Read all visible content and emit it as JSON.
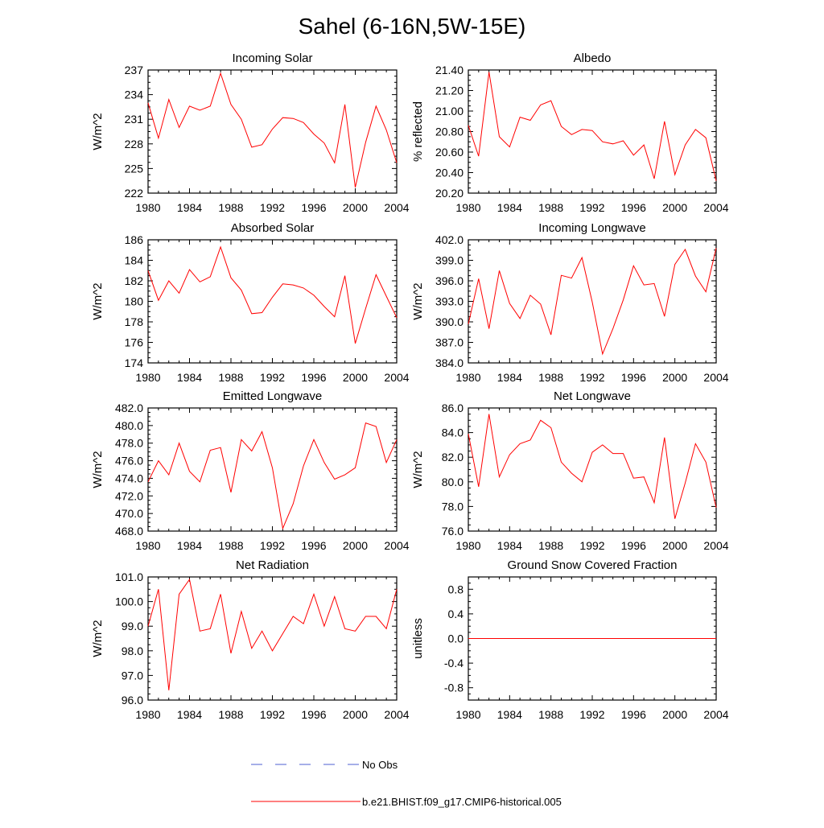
{
  "figure": {
    "title": "Sahel (6-16N,5W-15E)"
  },
  "legend": [
    {
      "label": "No Obs",
      "color": "#4c5fd0",
      "style": "dashed"
    },
    {
      "label": "b.e21.BHIST.f09_g17.CMIP6-historical.005",
      "color": "#ff0000",
      "style": "solid"
    }
  ],
  "chart_data": [
    {
      "type": "line",
      "title": "Incoming Solar",
      "ylabel": "W/m^2",
      "xlim": [
        1980,
        2004
      ],
      "ylim": [
        222,
        237
      ],
      "xticks": [
        1980,
        1984,
        1988,
        1992,
        1996,
        2000,
        2004
      ],
      "yticks": [
        "222",
        "225",
        "228",
        "231",
        "234",
        "237"
      ],
      "x": [
        1980,
        1981,
        1982,
        1983,
        1984,
        1985,
        1986,
        1987,
        1988,
        1989,
        1990,
        1991,
        1992,
        1993,
        1994,
        1995,
        1996,
        1997,
        1998,
        1999,
        2000,
        2001,
        2002,
        2003,
        2004
      ],
      "series": [
        {
          "color": "#ff0000",
          "values": [
            233.0,
            228.7,
            233.4,
            230.0,
            232.6,
            232.1,
            232.6,
            236.6,
            232.8,
            231.0,
            227.6,
            227.9,
            229.8,
            231.2,
            231.1,
            230.6,
            229.2,
            228.1,
            225.7,
            232.8,
            222.7,
            228.2,
            232.6,
            229.7,
            225.7
          ]
        }
      ]
    },
    {
      "type": "line",
      "title": "Albedo",
      "ylabel": "% reflected",
      "xlim": [
        1980,
        2004
      ],
      "ylim": [
        20.2,
        21.4
      ],
      "xticks": [
        1980,
        1984,
        1988,
        1992,
        1996,
        2000,
        2004
      ],
      "yticks": [
        "20.20",
        "20.40",
        "20.60",
        "20.80",
        "21.00",
        "21.20",
        "21.40"
      ],
      "x": [
        1980,
        1981,
        1982,
        1983,
        1984,
        1985,
        1986,
        1987,
        1988,
        1989,
        1990,
        1991,
        1992,
        1993,
        1994,
        1995,
        1996,
        1997,
        1998,
        1999,
        2000,
        2001,
        2002,
        2003,
        2004
      ],
      "series": [
        {
          "color": "#ff0000",
          "values": [
            20.86,
            20.56,
            21.38,
            20.75,
            20.65,
            20.94,
            20.91,
            21.06,
            21.1,
            20.85,
            20.77,
            20.82,
            20.81,
            20.7,
            20.68,
            20.71,
            20.57,
            20.67,
            20.34,
            20.9,
            20.38,
            20.67,
            20.82,
            20.74,
            20.32
          ]
        }
      ]
    },
    {
      "type": "line",
      "title": "Absorbed Solar",
      "ylabel": "W/m^2",
      "xlim": [
        1980,
        2004
      ],
      "ylim": [
        174,
        186
      ],
      "xticks": [
        1980,
        1984,
        1988,
        1992,
        1996,
        2000,
        2004
      ],
      "yticks": [
        "174",
        "176",
        "178",
        "180",
        "182",
        "184",
        "186"
      ],
      "x": [
        1980,
        1981,
        1982,
        1983,
        1984,
        1985,
        1986,
        1987,
        1988,
        1989,
        1990,
        1991,
        1992,
        1993,
        1994,
        1995,
        1996,
        1997,
        1998,
        1999,
        2000,
        2001,
        2002,
        2003,
        2004
      ],
      "series": [
        {
          "color": "#ff0000",
          "values": [
            183.0,
            180.1,
            182.0,
            180.8,
            183.1,
            181.9,
            182.4,
            185.3,
            182.3,
            181.1,
            178.8,
            178.9,
            180.4,
            181.7,
            181.6,
            181.3,
            180.6,
            179.5,
            178.5,
            182.5,
            175.9,
            179.3,
            182.6,
            180.5,
            178.4
          ]
        }
      ]
    },
    {
      "type": "line",
      "title": "Incoming Longwave",
      "ylabel": "W/m^2",
      "xlim": [
        1980,
        2004
      ],
      "ylim": [
        384,
        402
      ],
      "xticks": [
        1980,
        1984,
        1988,
        1992,
        1996,
        2000,
        2004
      ],
      "yticks": [
        "384.0",
        "387.0",
        "390.0",
        "393.0",
        "396.0",
        "399.0",
        "402.0"
      ],
      "x": [
        1980,
        1981,
        1982,
        1983,
        1984,
        1985,
        1986,
        1987,
        1988,
        1989,
        1990,
        1991,
        1992,
        1993,
        1994,
        1995,
        1996,
        1997,
        1998,
        1999,
        2000,
        2001,
        2002,
        2003,
        2004
      ],
      "series": [
        {
          "color": "#ff0000",
          "values": [
            389.7,
            396.3,
            389.0,
            397.5,
            392.7,
            390.5,
            393.9,
            392.6,
            388.1,
            396.8,
            396.4,
            399.4,
            392.9,
            385.3,
            389.0,
            393.2,
            398.2,
            395.4,
            395.6,
            390.8,
            398.4,
            400.6,
            396.7,
            394.4,
            400.8
          ]
        }
      ]
    },
    {
      "type": "line",
      "title": "Emitted Longwave",
      "ylabel": "W/m^2",
      "xlim": [
        1980,
        2004
      ],
      "ylim": [
        468,
        482
      ],
      "xticks": [
        1980,
        1984,
        1988,
        1992,
        1996,
        2000,
        2004
      ],
      "yticks": [
        "468.0",
        "470.0",
        "472.0",
        "474.0",
        "476.0",
        "478.0",
        "480.0",
        "482.0"
      ],
      "x": [
        1980,
        1981,
        1982,
        1983,
        1984,
        1985,
        1986,
        1987,
        1988,
        1989,
        1990,
        1991,
        1992,
        1993,
        1994,
        1995,
        1996,
        1997,
        1998,
        1999,
        2000,
        2001,
        2002,
        2003,
        2004
      ],
      "series": [
        {
          "color": "#ff0000",
          "values": [
            473.6,
            476.0,
            474.4,
            478.0,
            474.8,
            473.6,
            477.2,
            477.5,
            472.4,
            478.4,
            477.1,
            479.3,
            475.2,
            468.3,
            471.1,
            475.4,
            478.4,
            475.8,
            473.9,
            474.4,
            475.2,
            480.3,
            479.9,
            475.8,
            478.4
          ]
        }
      ]
    },
    {
      "type": "line",
      "title": "Net Longwave",
      "ylabel": "W/m^2",
      "xlim": [
        1980,
        2004
      ],
      "ylim": [
        76,
        86
      ],
      "xticks": [
        1980,
        1984,
        1988,
        1992,
        1996,
        2000,
        2004
      ],
      "yticks": [
        "76.0",
        "78.0",
        "80.0",
        "82.0",
        "84.0",
        "86.0"
      ],
      "x": [
        1980,
        1981,
        1982,
        1983,
        1984,
        1985,
        1986,
        1987,
        1988,
        1989,
        1990,
        1991,
        1992,
        1993,
        1994,
        1995,
        1996,
        1997,
        1998,
        1999,
        2000,
        2001,
        2002,
        2003,
        2004
      ],
      "series": [
        {
          "color": "#ff0000",
          "values": [
            83.9,
            79.6,
            85.5,
            80.4,
            82.2,
            83.1,
            83.4,
            85.0,
            84.4,
            81.6,
            80.7,
            80.0,
            82.4,
            83.0,
            82.3,
            82.3,
            80.3,
            80.4,
            78.3,
            83.6,
            77.0,
            79.9,
            83.1,
            81.6,
            77.9
          ]
        }
      ]
    },
    {
      "type": "line",
      "title": "Net Radiation",
      "ylabel": "W/m^2",
      "xlim": [
        1980,
        2004
      ],
      "ylim": [
        96,
        101
      ],
      "xticks": [
        1980,
        1984,
        1988,
        1992,
        1996,
        2000,
        2004
      ],
      "yticks": [
        "96.0",
        "97.0",
        "98.0",
        "99.0",
        "100.0",
        "101.0"
      ],
      "x": [
        1980,
        1981,
        1982,
        1983,
        1984,
        1985,
        1986,
        1987,
        1988,
        1989,
        1990,
        1991,
        1992,
        1993,
        1994,
        1995,
        1996,
        1997,
        1998,
        1999,
        2000,
        2001,
        2002,
        2003,
        2004
      ],
      "series": [
        {
          "color": "#ff0000",
          "values": [
            99.0,
            100.5,
            96.4,
            100.3,
            100.9,
            98.8,
            98.9,
            100.3,
            97.9,
            99.6,
            98.1,
            98.8,
            98.0,
            98.7,
            99.4,
            99.1,
            100.3,
            99.0,
            100.2,
            98.9,
            98.8,
            99.4,
            99.4,
            98.9,
            100.5
          ]
        }
      ]
    },
    {
      "type": "line",
      "title": "Ground Snow Covered Fraction",
      "ylabel": "unitless",
      "xlim": [
        1980,
        2004
      ],
      "ylim": [
        -1.0,
        1.0
      ],
      "xticks": [
        1980,
        1984,
        1988,
        1992,
        1996,
        2000,
        2004
      ],
      "yticks": [
        "-0.8",
        "-0.4",
        "0.0",
        "0.4",
        "0.8"
      ],
      "x": [
        1980,
        1981,
        1982,
        1983,
        1984,
        1985,
        1986,
        1987,
        1988,
        1989,
        1990,
        1991,
        1992,
        1993,
        1994,
        1995,
        1996,
        1997,
        1998,
        1999,
        2000,
        2001,
        2002,
        2003,
        2004
      ],
      "series": [
        {
          "color": "#ff0000",
          "values": [
            0,
            0,
            0,
            0,
            0,
            0,
            0,
            0,
            0,
            0,
            0,
            0,
            0,
            0,
            0,
            0,
            0,
            0,
            0,
            0,
            0,
            0,
            0,
            0,
            0
          ]
        }
      ]
    }
  ]
}
